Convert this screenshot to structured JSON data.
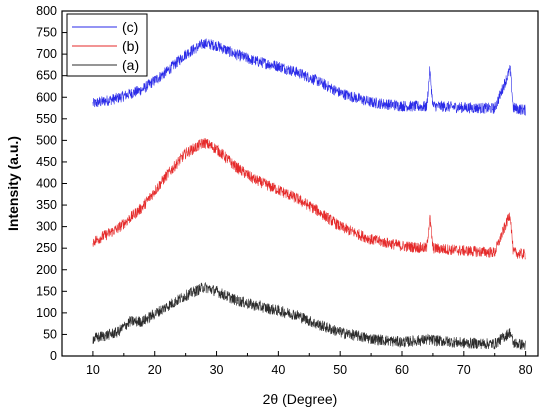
{
  "chart_data": {
    "type": "line",
    "xlabel": "2θ (Degree)",
    "ylabel": "Intensity (a.u.)",
    "xlim": [
      5,
      82
    ],
    "ylim": [
      0,
      800
    ],
    "x_ticks": [
      10,
      20,
      30,
      40,
      50,
      60,
      70,
      80
    ],
    "y_ticks": [
      0,
      50,
      100,
      150,
      200,
      250,
      300,
      350,
      400,
      450,
      500,
      550,
      600,
      650,
      700,
      750,
      800
    ],
    "grid": false,
    "legend_position": "top-left",
    "series": [
      {
        "name": "(c)",
        "color": "#2a2ae8",
        "x": [
          10,
          14,
          18,
          22,
          25,
          28,
          30,
          33,
          36,
          40,
          43,
          46,
          50,
          55,
          60,
          64,
          64.5,
          65,
          70,
          75,
          77.5,
          78,
          80
        ],
        "y": [
          585,
          598,
          618,
          660,
          700,
          725,
          720,
          700,
          685,
          672,
          658,
          640,
          610,
          588,
          580,
          578,
          662,
          580,
          576,
          574,
          665,
          575,
          570
        ]
      },
      {
        "name": "(b)",
        "color": "#e52a2a",
        "x": [
          10,
          14,
          18,
          22,
          25,
          28,
          30,
          33,
          36,
          40,
          43,
          46,
          50,
          55,
          60,
          64,
          64.5,
          65,
          70,
          75,
          77.5,
          78,
          80
        ],
        "y": [
          265,
          295,
          345,
          420,
          470,
          495,
          480,
          440,
          410,
          385,
          365,
          340,
          300,
          270,
          255,
          250,
          322,
          250,
          244,
          240,
          330,
          240,
          235
        ]
      },
      {
        "name": "(a)",
        "color": "#2b2b2b",
        "x": [
          10,
          14,
          16,
          18,
          22,
          25,
          28,
          30,
          33,
          36,
          40,
          43,
          46,
          50,
          55,
          60,
          64,
          70,
          75,
          77.5,
          78,
          80
        ],
        "y": [
          40,
          55,
          80,
          80,
          115,
          140,
          160,
          150,
          130,
          118,
          105,
          95,
          75,
          55,
          40,
          32,
          38,
          30,
          28,
          55,
          30,
          25
        ]
      }
    ]
  }
}
